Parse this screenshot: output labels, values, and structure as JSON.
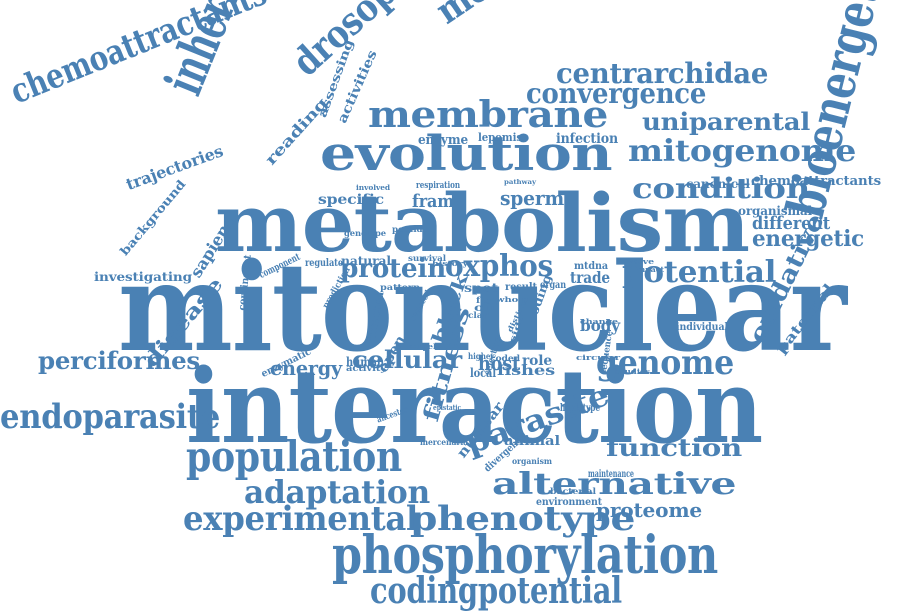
{
  "color": "#4a81b4",
  "words": [
    "mitonuclear",
    "interaction",
    "metabolism",
    "evolution",
    "inheritance",
    "drosophila",
    "melanogaster",
    "chemoattractants",
    "bioenergetics",
    "phosphorylation",
    "codingpotential",
    "experimental",
    "phenotype",
    "population",
    "adaptation",
    "endoparasite",
    "perciformes",
    "membrane",
    "convergence",
    "centrarchidae",
    "uniparental",
    "mitogenome",
    "condition",
    "potential",
    "protein",
    "oxphos",
    "genome",
    "cellular",
    "parasite",
    "alternative",
    "function",
    "proteome",
    "fitness",
    "oxidative",
    "energetic",
    "different",
    "disease",
    "trajectories",
    "background",
    "investigating",
    "sapiens",
    "reading",
    "assessing",
    "activities",
    "enzyme",
    "lepomis",
    "infection",
    "specific",
    "frame",
    "sperm",
    "paternal",
    "energy",
    "chemoattractants",
    "organismal",
    "canonical",
    "natural",
    "regulate",
    "human",
    "host",
    "role",
    "local",
    "fishes",
    "coding",
    "trade",
    "mtdna",
    "body",
    "black",
    "infected",
    "open",
    "spot",
    "result",
    "organ",
    "nuclear",
    "animal",
    "divergence",
    "haplotype",
    "ancestor",
    "epistatic",
    "mercenaria",
    "maintenance",
    "environment",
    "bacterial",
    "individual",
    "component",
    "contingent",
    "enzymatic",
    "activity",
    "prediction",
    "involved",
    "respiration",
    "pathway",
    "genotype",
    "peptide",
    "coded",
    "higher",
    "clam",
    "sequence",
    "circular",
    "studies",
    "history",
    "survival",
    "bivalve",
    "impact",
    "pattern",
    "reduced",
    "model",
    "distinct",
    "change",
    "selection",
    "organism",
    "whole",
    "off",
    "fish",
    "side"
  ]
}
